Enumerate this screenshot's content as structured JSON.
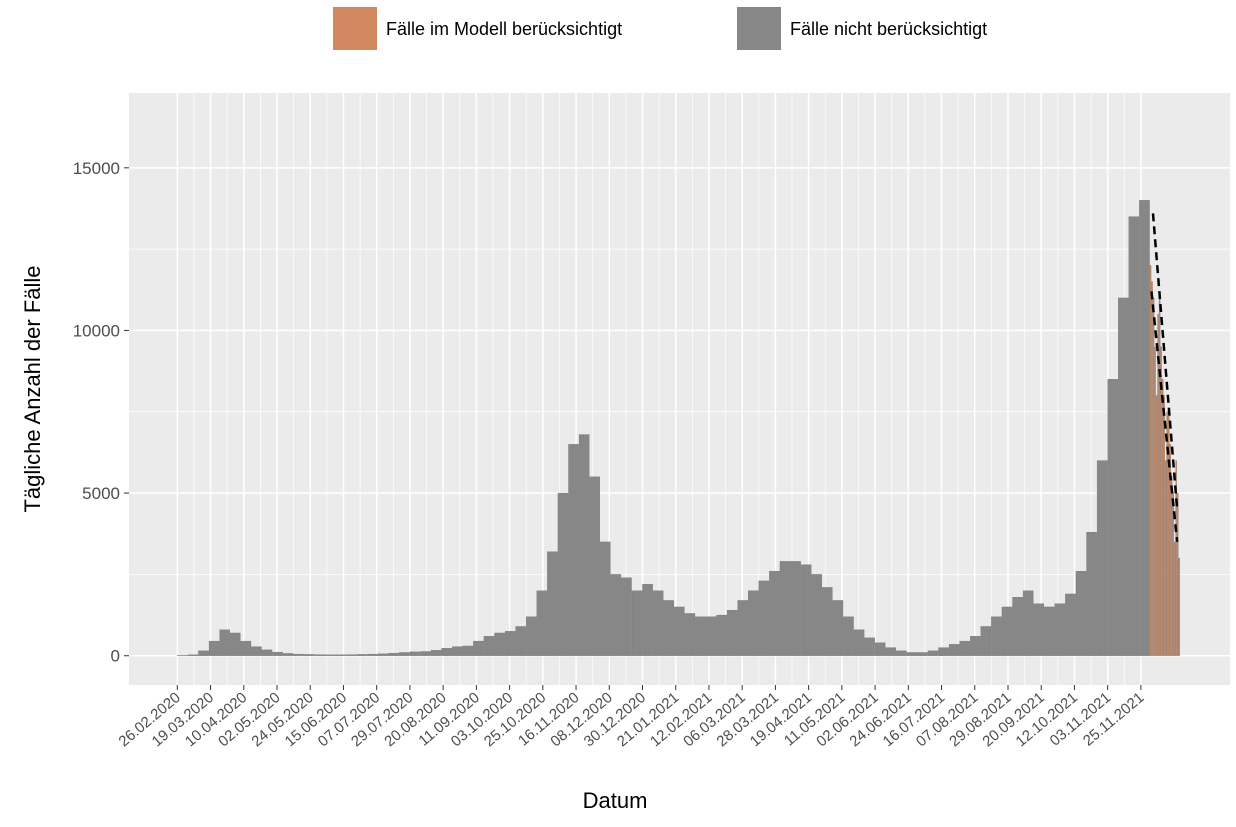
{
  "chart_data": {
    "type": "bar",
    "x_label": "Datum",
    "y_label": "Tägliche Anzahl der Fälle",
    "xlim": [
      "25.01.2020",
      "23.01.2022"
    ],
    "xticks": [
      "26.02.2020",
      "19.03.2020",
      "10.04.2020",
      "02.05.2020",
      "24.05.2020",
      "15.06.2020",
      "07.07.2020",
      "29.07.2020",
      "20.08.2020",
      "11.09.2020",
      "03.10.2020",
      "25.10.2020",
      "16.11.2020",
      "08.12.2020",
      "30.12.2020",
      "21.01.2021",
      "12.02.2021",
      "06.03.2021",
      "28.03.2021",
      "19.04.2021",
      "11.05.2021",
      "02.06.2021",
      "24.06.2021",
      "16.07.2021",
      "07.08.2021",
      "29.08.2021",
      "20.09.2021",
      "12.10.2021",
      "03.11.2021",
      "25.11.2021"
    ],
    "ylim": [
      -900,
      17300
    ],
    "yticks": [
      0,
      5000,
      10000,
      15000
    ],
    "grid": true,
    "minor_grid": true,
    "legend": "top",
    "series": [
      {
        "name": "Fälle im Modell berücksichtigt",
        "color": "#d2895f",
        "x": [
          "01.12.2021",
          "02.12.2021",
          "03.12.2021",
          "04.12.2021",
          "05.12.2021",
          "06.12.2021",
          "07.12.2021",
          "08.12.2021",
          "09.12.2021",
          "10.12.2021",
          "11.12.2021",
          "12.12.2021",
          "13.12.2021",
          "14.12.2021",
          "15.12.2021",
          "16.12.2021",
          "17.12.2021",
          "18.12.2021",
          "19.12.2021",
          "20.12.2021"
        ],
        "values": [
          12000,
          11500,
          11000,
          9500,
          8000,
          10500,
          11000,
          9500,
          8500,
          8000,
          6000,
          7500,
          7500,
          6500,
          5500,
          5000,
          3500,
          6000,
          5000,
          3000
        ]
      },
      {
        "name": "Fälle nicht berücksichtigt",
        "color": "#878787",
        "x": [
          "26.02.2020",
          "04.03.2020",
          "11.03.2020",
          "18.03.2020",
          "25.03.2020",
          "01.04.2020",
          "08.04.2020",
          "15.04.2020",
          "22.04.2020",
          "29.04.2020",
          "06.05.2020",
          "13.05.2020",
          "20.05.2020",
          "27.05.2020",
          "03.06.2020",
          "10.06.2020",
          "17.06.2020",
          "24.06.2020",
          "01.07.2020",
          "08.07.2020",
          "15.07.2020",
          "22.07.2020",
          "29.07.2020",
          "05.08.2020",
          "12.08.2020",
          "19.08.2020",
          "26.08.2020",
          "02.09.2020",
          "09.09.2020",
          "16.09.2020",
          "23.09.2020",
          "30.09.2020",
          "07.10.2020",
          "14.10.2020",
          "21.10.2020",
          "28.10.2020",
          "04.11.2020",
          "11.11.2020",
          "18.11.2020",
          "25.11.2020",
          "02.12.2020",
          "09.12.2020",
          "16.12.2020",
          "23.12.2020",
          "30.12.2020",
          "06.01.2021",
          "13.01.2021",
          "20.01.2021",
          "27.01.2021",
          "03.02.2021",
          "10.02.2021",
          "17.02.2021",
          "24.02.2021",
          "03.03.2021",
          "10.03.2021",
          "17.03.2021",
          "24.03.2021",
          "31.03.2021",
          "07.04.2021",
          "14.04.2021",
          "21.04.2021",
          "28.04.2021",
          "05.05.2021",
          "12.05.2021",
          "19.05.2021",
          "26.05.2021",
          "02.06.2021",
          "09.06.2021",
          "16.06.2021",
          "23.06.2021",
          "30.06.2021",
          "07.07.2021",
          "14.07.2021",
          "21.07.2021",
          "28.07.2021",
          "04.08.2021",
          "11.08.2021",
          "18.08.2021",
          "25.08.2021",
          "01.09.2021",
          "08.09.2021",
          "15.09.2021",
          "22.09.2021",
          "29.09.2021",
          "06.10.2021",
          "13.10.2021",
          "20.10.2021",
          "27.10.2021",
          "03.11.2021",
          "10.11.2021",
          "17.11.2021",
          "24.11.2021"
        ],
        "values": [
          10,
          30,
          150,
          450,
          800,
          700,
          450,
          280,
          180,
          110,
          70,
          50,
          40,
          35,
          30,
          30,
          35,
          40,
          50,
          60,
          80,
          100,
          120,
          130,
          170,
          230,
          280,
          300,
          450,
          600,
          700,
          750,
          900,
          1200,
          2000,
          3200,
          5000,
          6500,
          6800,
          5500,
          3500,
          2500,
          2400,
          2000,
          2200,
          2000,
          1700,
          1500,
          1300,
          1200,
          1200,
          1250,
          1400,
          1700,
          2000,
          2300,
          2600,
          2900,
          2900,
          2800,
          2500,
          2100,
          1700,
          1200,
          800,
          550,
          400,
          250,
          150,
          100,
          100,
          150,
          250,
          350,
          450,
          600,
          900,
          1200,
          1500,
          1800,
          2000,
          1600,
          1500,
          1600,
          1900,
          2600,
          3800,
          6000,
          8500,
          11000,
          13500,
          14000
        ]
      }
    ],
    "trend_lines": [
      {
        "x": [
          "03.12.2021",
          "19.12.2021"
        ],
        "values": [
          13600,
          4500
        ]
      },
      {
        "x": [
          "02.12.2021",
          "19.12.2021"
        ],
        "values": [
          11200,
          3500
        ]
      }
    ]
  }
}
